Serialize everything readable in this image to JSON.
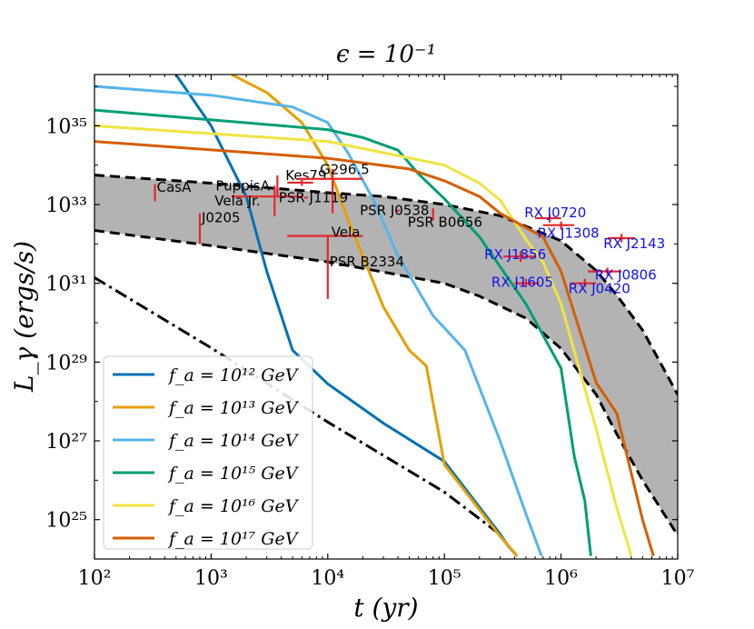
{
  "chart_data": {
    "type": "line",
    "title": "ϵ = 10⁻¹",
    "xlabel": "t (yr)",
    "ylabel": "L_γ (ergs/s)",
    "xscale": "log",
    "yscale": "log",
    "xlim": [
      100,
      10000000
    ],
    "ylim": [
      1e+24,
      2e+36
    ],
    "x_ticks": [
      {
        "value": 100,
        "label": "10²"
      },
      {
        "value": 1000,
        "label": "10³"
      },
      {
        "value": 10000,
        "label": "10⁴"
      },
      {
        "value": 100000,
        "label": "10⁵"
      },
      {
        "value": 1000000,
        "label": "10⁶"
      },
      {
        "value": 10000000,
        "label": "10⁷"
      }
    ],
    "y_ticks": [
      {
        "value": 1e+25,
        "label": "10²⁵"
      },
      {
        "value": 1e+27,
        "label": "10²⁷"
      },
      {
        "value": 1e+29,
        "label": "10²⁹"
      },
      {
        "value": 1e+31,
        "label": "10³¹"
      },
      {
        "value": 1e+33,
        "label": "10³³"
      },
      {
        "value": 1e+35,
        "label": "10³⁵"
      }
    ],
    "band": {
      "fill": "#b3b3b3",
      "upper": [
        [
          100,
          5.6e+33
        ],
        [
          1000,
          3.5e+33
        ],
        [
          10000,
          2e+33
        ],
        [
          30000,
          1.6e+33
        ],
        [
          100000,
          1e+33
        ],
        [
          300000,
          5.2e+32
        ],
        [
          1000000,
          1.2e+32
        ],
        [
          2000000,
          2.1e+31
        ],
        [
          3000000,
          5e+30
        ],
        [
          5000000,
          6.5e+29
        ],
        [
          10000000,
          1.5e+28
        ]
      ],
      "lower": [
        [
          100,
          2.2e+32
        ],
        [
          1000,
          9e+31
        ],
        [
          10000,
          3.5e+31
        ],
        [
          100000,
          1e+31
        ],
        [
          200000,
          4.7e+30
        ],
        [
          500000,
          1.3e+30
        ],
        [
          1000000,
          2.2e+29
        ],
        [
          2000000,
          1.5e+28
        ],
        [
          3000000,
          1.5e+27
        ],
        [
          5000000,
          1e+26
        ],
        [
          10000000,
          4e+24
        ]
      ]
    },
    "background_curve": {
      "name": "dash-dot",
      "color": "#000000",
      "points": [
        [
          100,
          1.4e+31
        ],
        [
          1000,
          2.3e+29
        ],
        [
          10000,
          3e+27
        ],
        [
          100000,
          5e+25
        ],
        [
          300000,
          4.2e+24
        ],
        [
          350000,
          2.2e+24
        ],
        [
          420000,
          1.2e+24
        ]
      ]
    },
    "series": [
      {
        "name": "f_a = 10¹² GeV",
        "color": "#0072b2",
        "points": [
          [
            500,
            2e+36
          ],
          [
            1000,
            1e+35
          ],
          [
            2000,
            1.6e+33
          ],
          [
            3000,
            2e+31
          ],
          [
            5000,
            2e+29
          ],
          [
            10000,
            2.8e+28
          ],
          [
            30000,
            2.8e+27
          ],
          [
            100000,
            3e+26
          ],
          [
            300000,
            4.3e+24
          ],
          [
            350000,
            2.2e+24
          ],
          [
            420000,
            1.2e+24
          ]
        ]
      },
      {
        "name": "f_a = 10¹³ GeV",
        "color": "#e69f00",
        "points": [
          [
            1500,
            2e+36
          ],
          [
            3000,
            7e+35
          ],
          [
            6000,
            1.2e+35
          ],
          [
            10000,
            1e+34
          ],
          [
            15000,
            4e+32
          ],
          [
            30000,
            2.5e+30
          ],
          [
            50000,
            2e+29
          ],
          [
            70000,
            8e+28
          ],
          [
            100000,
            2.5e+26
          ],
          [
            300000,
            3.8e+24
          ],
          [
            420000,
            1.2e+24
          ]
        ]
      },
      {
        "name": "f_a = 10¹⁴ GeV",
        "color": "#56b4e9",
        "points": [
          [
            100,
            1e+36
          ],
          [
            1000,
            6e+35
          ],
          [
            5000,
            3e+35
          ],
          [
            10000,
            1.2e+35
          ],
          [
            15000,
            2e+34
          ],
          [
            25000,
            1.2e+33
          ],
          [
            40000,
            5e+31
          ],
          [
            80000,
            1.5e+30
          ],
          [
            150000,
            2e+29
          ],
          [
            300000,
            1e+27
          ],
          [
            500000,
            1.4e+25
          ],
          [
            680000,
            1.2e+24
          ]
        ]
      },
      {
        "name": "f_a = 10¹⁵ GeV",
        "color": "#009e73",
        "points": [
          [
            100,
            2.5e+35
          ],
          [
            10000,
            8e+34
          ],
          [
            20000,
            5e+34
          ],
          [
            40000,
            2.4e+34
          ],
          [
            60000,
            6e+33
          ],
          [
            100000,
            1.4e+33
          ],
          [
            200000,
            1.5e+32
          ],
          [
            500000,
            3e+30
          ],
          [
            1000000,
            7e+28
          ],
          [
            1300000,
            4e+26
          ],
          [
            1600000,
            3e+25
          ],
          [
            1800000,
            1.2e+24
          ]
        ]
      },
      {
        "name": "f_a = 10¹⁶ GeV",
        "color": "#f0e442",
        "points": [
          [
            100,
            1e+35
          ],
          [
            10000,
            4e+34
          ],
          [
            100000,
            1e+34
          ],
          [
            200000,
            3.5e+33
          ],
          [
            300000,
            1.3e+33
          ],
          [
            500000,
            1.3e+32
          ],
          [
            700000,
            3.5e+31
          ],
          [
            1000000,
            3e+30
          ],
          [
            2000000,
            2e+27
          ],
          [
            3000000,
            2e+25
          ],
          [
            4000000,
            1.2e+24
          ]
        ]
      },
      {
        "name": "f_a = 10¹⁷ GeV",
        "color": "#d55e00",
        "points": [
          [
            100,
            4e+34
          ],
          [
            10000,
            1.5e+34
          ],
          [
            50000,
            8e+33
          ],
          [
            100000,
            4e+33
          ],
          [
            200000,
            1.6e+33
          ],
          [
            300000,
            6e+32
          ],
          [
            700000,
            1.5e+32
          ],
          [
            1000000,
            2e+31
          ],
          [
            2000000,
            3e+28
          ],
          [
            3000000,
            5e+27
          ],
          [
            5000000,
            1e+25
          ],
          [
            6200000,
            1.2e+24
          ]
        ]
      }
    ],
    "pulsars": [
      {
        "label": "CasA",
        "x": 330,
        "y": 2e+33,
        "xerr": [
          330,
          330
        ],
        "yerr": [
          1.2e+33,
          3.3e+33
        ],
        "color": "#e8262a",
        "label_color": "#000000",
        "anchor": "right",
        "dx": 2,
        "dy": -6
      },
      {
        "label": "PuppisA",
        "x": 3700,
        "y": 3e+33,
        "xerr": [
          3700,
          3700
        ],
        "yerr": [
          1.6e+33,
          5.5e+33
        ],
        "color": "#e8262a",
        "label_color": "#000000",
        "anchor": "left",
        "dx": -68,
        "dy": 0
      },
      {
        "label": "Vela Jr.",
        "x": 3500,
        "y": 1.6e+33,
        "xerr": [
          1500,
          6000
        ],
        "yerr": [
          5e+32,
          3e+33
        ],
        "color": "#e8262a",
        "label_color": "#000000",
        "anchor": "left",
        "dx": -66,
        "dy": 5
      },
      {
        "label": "Kes79",
        "x": 6000,
        "y": 3.6e+33,
        "xerr": [
          4500,
          7500
        ],
        "yerr": [
          3e+33,
          4.3e+33
        ],
        "color": "#e8262a",
        "label_color": "#000000",
        "anchor": "right",
        "dx": -18,
        "dy": -8
      },
      {
        "label": "G296.5",
        "x": 11000,
        "y": 4.5e+33,
        "xerr": [
          5500,
          20000
        ],
        "yerr": [
          6e+32,
          8e+33
        ],
        "color": "#e8262a",
        "label_color": "#000000",
        "anchor": "right",
        "dx": -14,
        "dy": -10
      },
      {
        "label": "PSR J1119",
        "x": 6500,
        "y": 1.5e+33,
        "xerr": [
          6500,
          6500
        ],
        "yerr": [
          1.5e+33,
          1.5e+33
        ],
        "color": "#e8262a",
        "label_color": "#000000",
        "anchor": "right",
        "dx": -30,
        "dy": 0
      },
      {
        "label": "PSR J0538",
        "x": 40000,
        "y": 7e+32,
        "xerr": [
          40000,
          40000
        ],
        "yerr": [
          7e+32,
          7e+32
        ],
        "color": "#e8262a",
        "label_color": "#000000",
        "anchor": "left",
        "dx": -42,
        "dy": 0
      },
      {
        "label": "PSR B0656",
        "x": 80000,
        "y": 6e+32,
        "xerr": [
          80000,
          80000
        ],
        "yerr": [
          4e+32,
          8e+32
        ],
        "color": "#e8262a",
        "label_color": "#000000",
        "anchor": "left",
        "dx": -28,
        "dy": 10
      },
      {
        "label": "J0205",
        "x": 800,
        "y": 3e+32,
        "xerr": [
          800,
          800
        ],
        "yerr": [
          1e+32,
          6e+32
        ],
        "color": "#e8262a",
        "label_color": "#000000",
        "anchor": "right",
        "dx": 2,
        "dy": -8
      },
      {
        "label": "Vela",
        "x": 10000,
        "y": 1.6e+32,
        "xerr": [
          4500,
          20000
        ],
        "yerr": [
          1.6e+32,
          1.6e+32
        ],
        "color": "#e8262a",
        "label_color": "#000000",
        "anchor": "right",
        "dx": 4,
        "dy": -4
      },
      {
        "label": "PSR B2334",
        "x": 10000,
        "y": 3e+31,
        "xerr": [
          10000,
          10000
        ],
        "yerr": [
          4e+30,
          1.6e+32
        ],
        "color": "#e8262a",
        "label_color": "#000000",
        "anchor": "right",
        "dx": 2,
        "dy": -3
      },
      {
        "label": "RX  J0720",
        "x": 800000,
        "y": 4.5e+32,
        "xerr": [
          600000,
          1000000
        ],
        "yerr": [
          3.5e+32,
          5.5e+32
        ],
        "color": "#e8262a",
        "label_color": "#1010ee",
        "anchor": "left",
        "dx": -28,
        "dy": -6
      },
      {
        "label": "RX  J1308",
        "x": 1000000,
        "y": 3e+32,
        "xerr": [
          700000,
          1300000
        ],
        "yerr": [
          2.3e+32,
          3.7e+32
        ],
        "color": "#e8262a",
        "label_color": "#1010ee",
        "anchor": "left",
        "dx": -26,
        "dy": 9
      },
      {
        "label": "RX  J2143",
        "x": 3300000,
        "y": 1.4e+32,
        "xerr": [
          2500000,
          4300000
        ],
        "yerr": [
          1.1e+32,
          1.8e+32
        ],
        "color": "#e8262a",
        "label_color": "#1010ee",
        "anchor": "left",
        "dx": -20,
        "dy": 6
      },
      {
        "label": "RX  J1856",
        "x": 450000,
        "y": 4.8e+31,
        "xerr": [
          320000,
          600000
        ],
        "yerr": [
          3.5e+31,
          6.5e+31
        ],
        "color": "#e8262a",
        "label_color": "#1010ee",
        "anchor": "left",
        "dx": -40,
        "dy": -2
      },
      {
        "label": "RX  J0806",
        "x": 2500000,
        "y": 2e+31,
        "xerr": [
          1700000,
          3300000
        ],
        "yerr": [
          1.6e+31,
          2.5e+31
        ],
        "color": "#e8262a",
        "label_color": "#1010ee",
        "anchor": "left",
        "dx": -14,
        "dy": 4
      },
      {
        "label": "RX  J1605",
        "x": 500000,
        "y": 1e+31,
        "xerr": [
          400000,
          650000
        ],
        "yerr": [
          8e+30,
          1.3e+31
        ],
        "color": "#e8262a",
        "label_color": "#1010ee",
        "anchor": "left",
        "dx": -38,
        "dy": -1
      },
      {
        "label": "RX  J0420",
        "x": 1600000,
        "y": 1e+31,
        "xerr": [
          1200000,
          2000000
        ],
        "yerr": [
          8e+30,
          1.3e+31
        ],
        "color": "#e8262a",
        "label_color": "#1010ee",
        "anchor": "left",
        "dx": -18,
        "dy": 6
      }
    ],
    "legend": {
      "placement": "lower-left",
      "entries": [
        {
          "label": "f_a = 10¹² GeV",
          "color": "#0072b2"
        },
        {
          "label": "f_a = 10¹³ GeV",
          "color": "#e69f00"
        },
        {
          "label": "f_a = 10¹⁴ GeV",
          "color": "#56b4e9"
        },
        {
          "label": "f_a = 10¹⁵ GeV",
          "color": "#009e73"
        },
        {
          "label": "f_a = 10¹⁶ GeV",
          "color": "#f0e442"
        },
        {
          "label": "f_a = 10¹⁷ GeV",
          "color": "#d55e00"
        }
      ]
    }
  }
}
